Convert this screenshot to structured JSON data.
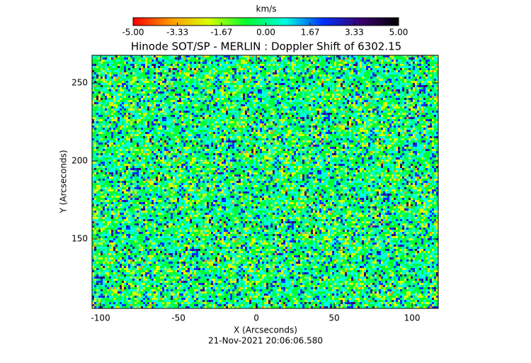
{
  "chart_data": {
    "type": "image",
    "title": "Hinode SOT/SP - MERLIN : Doppler Shift of 6302.15",
    "xlabel": "X (Arcseconds)",
    "ylabel": "Y (Arcseconds)",
    "timestamp": "21-Nov-2021 20:06:06.580",
    "xlim": [
      -105.5,
      116.8
    ],
    "xticks": [
      -100,
      -50,
      0,
      50,
      100
    ],
    "ylim": [
      105.5,
      267.7
    ],
    "yticks": [
      150,
      200,
      250
    ],
    "colorbar": {
      "label": "km/s",
      "clim": [
        -5,
        5
      ],
      "colors": [
        "#ff0000",
        "#ff9a00",
        "#d8ff00",
        "#00ff30",
        "#00ffe0",
        "#0030ff",
        "#3a0070",
        "#000000"
      ],
      "ticks": [
        {
          "value": -5,
          "label": "-5.00"
        },
        -3.33,
        -1.67,
        {
          "value": 0,
          "label": "0.00"
        },
        1.67,
        3.33,
        {
          "value": 5,
          "label": "5.00"
        }
      ]
    }
  }
}
